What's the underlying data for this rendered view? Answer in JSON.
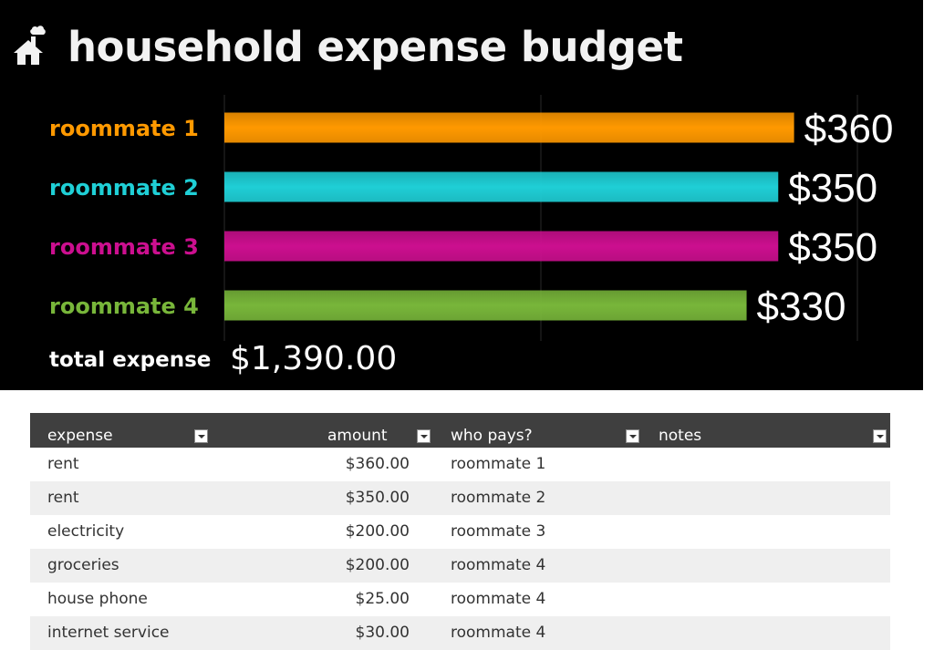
{
  "dashboard": {
    "title": "household expense budget",
    "total_label": "total expense",
    "total_value": "$1,390.00",
    "house_icon": "house-icon"
  },
  "chart_data": {
    "type": "bar",
    "orientation": "horizontal",
    "categories": [
      "roommate 1",
      "roommate 2",
      "roommate 3",
      "roommate 4"
    ],
    "values": [
      360,
      350,
      350,
      330
    ],
    "value_labels": [
      "$360",
      "$350",
      "$350",
      "$330"
    ],
    "colors": [
      "#ff9900",
      "#1fcfd6",
      "#cc0f8f",
      "#78b63a"
    ],
    "xlim": [
      0,
      400
    ],
    "grid": true,
    "title": "",
    "xlabel": "",
    "ylabel": ""
  },
  "table": {
    "headers": {
      "expense": "expense",
      "amount": "amount",
      "who_pays": "who pays?",
      "notes": "notes"
    },
    "rows": [
      {
        "expense": "rent",
        "amount": "$360.00",
        "who_pays": "roommate 1",
        "notes": ""
      },
      {
        "expense": "rent",
        "amount": "$350.00",
        "who_pays": "roommate 2",
        "notes": ""
      },
      {
        "expense": "electricity",
        "amount": "$200.00",
        "who_pays": "roommate 3",
        "notes": ""
      },
      {
        "expense": "groceries",
        "amount": "$200.00",
        "who_pays": "roommate 4",
        "notes": ""
      },
      {
        "expense": "house phone",
        "amount": "$25.00",
        "who_pays": "roommate 4",
        "notes": ""
      },
      {
        "expense": "internet service",
        "amount": "$30.00",
        "who_pays": "roommate 4",
        "notes": ""
      }
    ]
  },
  "colors": {
    "dashboard_bg": "#000000",
    "header_bg": "#3f3f3f",
    "row_alt_bg": "#efefef"
  }
}
